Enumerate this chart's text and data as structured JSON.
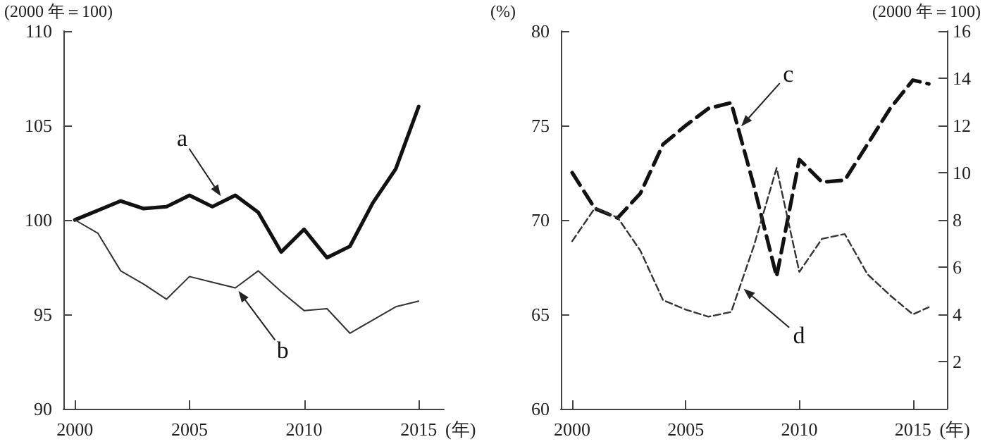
{
  "chart_data": [
    {
      "type": "line",
      "ylabel": "(2000 年＝100)",
      "xlabel": "(年)",
      "xlim": [
        1999.5,
        2016.1
      ],
      "xticks": [
        2000,
        2005,
        2010,
        2015
      ],
      "ylim": [
        90,
        110
      ],
      "yticks": [
        90,
        95,
        100,
        105,
        110
      ],
      "marker": "none",
      "x": [
        2000,
        2001,
        2002,
        2003,
        2004,
        2005,
        2006,
        2007,
        2008,
        2009,
        2010,
        2011,
        2012,
        2013,
        2014,
        2015
      ],
      "series": [
        {
          "color": "#111111",
          "line_style": "solid",
          "values": [
            100,
            100.5,
            101.0,
            100.6,
            100.7,
            101.3,
            100.7,
            101.3,
            100.4,
            98.3,
            99.5,
            98.0,
            98.6,
            100.9,
            102.7,
            106.0
          ]
        },
        {
          "color": "#333333",
          "line_style": "solid",
          "values": [
            100,
            99.3,
            97.3,
            96.6,
            95.8,
            97.0,
            96.7,
            96.4,
            97.3,
            96.2,
            95.2,
            95.3,
            94.0,
            94.7,
            95.4,
            95.7
          ]
        }
      ],
      "annotations": [
        {
          "text": "a",
          "x": 2006.4,
          "y": 101.2
        },
        {
          "text": "b",
          "x": 2007.1,
          "y": 96.3
        }
      ]
    },
    {
      "type": "line",
      "ylabel": "(%)",
      "y2label": "(2000 年＝100)",
      "xlabel": "(年)",
      "xlim": [
        1999.5,
        2016.5
      ],
      "xticks": [
        2000,
        2005,
        2010,
        2015
      ],
      "ylim": [
        60,
        80
      ],
      "yticks": [
        60,
        65,
        70,
        75,
        80
      ],
      "y2lim": [
        0,
        16
      ],
      "y2ticks": [
        2,
        4,
        6,
        8,
        10,
        12,
        14,
        16
      ],
      "marker": "none",
      "x": [
        2000,
        2001,
        2002,
        2003,
        2004,
        2005,
        2006,
        2007,
        2008,
        2009,
        2010,
        2011,
        2012,
        2013,
        2014,
        2015,
        2015.7
      ],
      "series": [
        {
          "color": "#111111",
          "line_style": "dashed",
          "values": [
            72.5,
            70.6,
            70.1,
            71.4,
            74.0,
            75.0,
            75.9,
            76.2,
            71.8,
            67.0,
            73.2,
            72.0,
            72.1,
            74.0,
            75.9,
            77.4,
            77.2
          ]
        },
        {
          "color": "#333333",
          "line_style": "dashed",
          "axis": "y2",
          "values": [
            7.1,
            8.5,
            8.1,
            6.7,
            4.6,
            4.2,
            3.9,
            4.1,
            6.9,
            10.2,
            5.8,
            7.2,
            7.4,
            5.7,
            4.8,
            4.0,
            4.3
          ]
        }
      ],
      "annotations": [
        {
          "text": "c",
          "x": 2007.4,
          "y": 74.9
        },
        {
          "text": "d",
          "x": 2007.5,
          "y": 66.4
        }
      ]
    }
  ]
}
